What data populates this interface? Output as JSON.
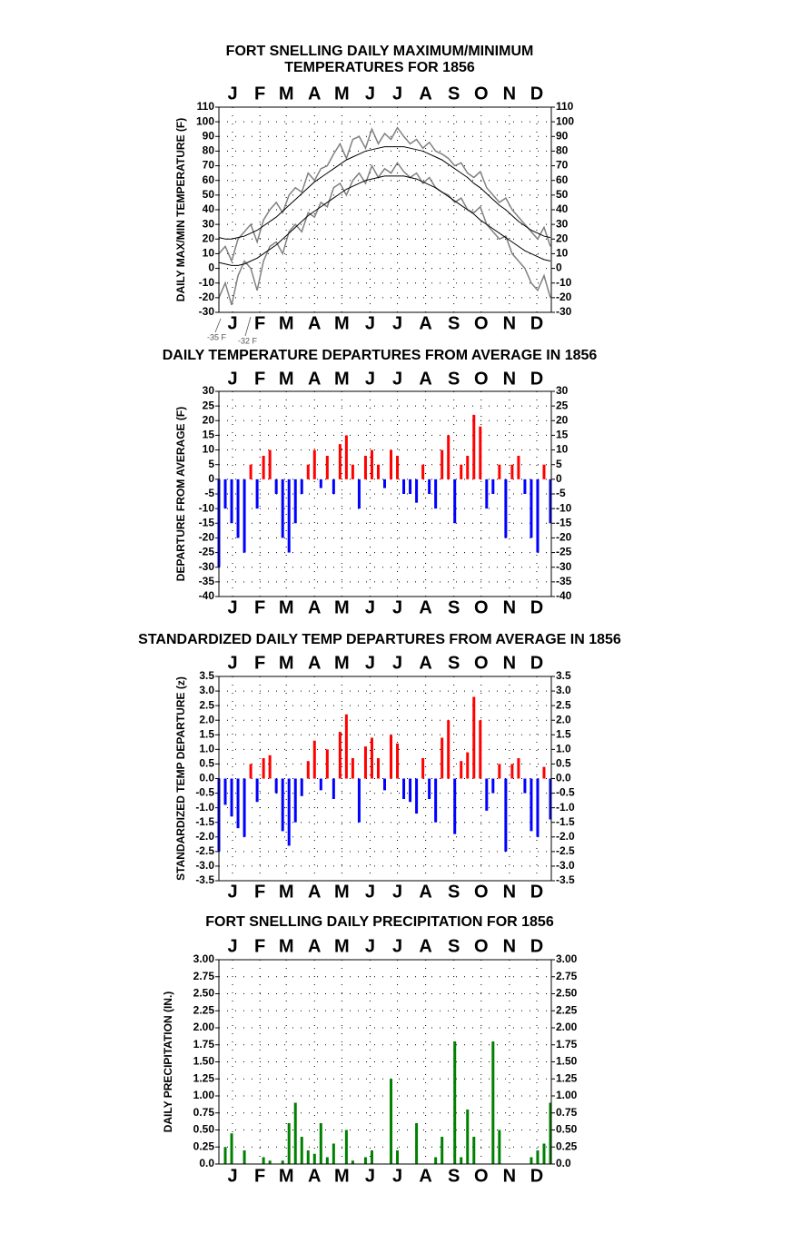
{
  "chart_data": [
    {
      "type": "line",
      "title": [
        "FORT SNELLING DAILY MAXIMUM/MINIMUM",
        "TEMPERATURES FOR 1856"
      ],
      "ylabel": "DAILY MAX/MIN TEMPERATURE (F)",
      "annotations": [
        "-35 F",
        "-32 F"
      ],
      "x": [
        1,
        8,
        15,
        22,
        29,
        36,
        43,
        50,
        57,
        64,
        71,
        78,
        85,
        92,
        99,
        106,
        113,
        120,
        127,
        134,
        141,
        148,
        155,
        162,
        169,
        176,
        183,
        190,
        197,
        204,
        211,
        218,
        225,
        232,
        239,
        246,
        253,
        260,
        267,
        274,
        281,
        288,
        295,
        302,
        309,
        316,
        323,
        330,
        337,
        344,
        351,
        358,
        365
      ],
      "series": [
        {
          "color": "#808080",
          "values": [
            10,
            15,
            5,
            20,
            25,
            30,
            18,
            33,
            40,
            45,
            38,
            50,
            55,
            52,
            65,
            60,
            68,
            70,
            78,
            85,
            75,
            88,
            90,
            82,
            95,
            85,
            92,
            88,
            96,
            90,
            85,
            88,
            82,
            86,
            80,
            78,
            75,
            70,
            72,
            65,
            62,
            66,
            55,
            50,
            45,
            48,
            40,
            35,
            30,
            25,
            20,
            28,
            15
          ]
        },
        {
          "color": "#808080",
          "values": [
            -20,
            -10,
            -25,
            -5,
            5,
            0,
            -15,
            5,
            15,
            18,
            10,
            25,
            30,
            25,
            38,
            35,
            45,
            42,
            55,
            58,
            50,
            60,
            65,
            58,
            70,
            62,
            68,
            65,
            72,
            66,
            62,
            65,
            58,
            62,
            55,
            52,
            50,
            45,
            48,
            40,
            38,
            42,
            30,
            25,
            20,
            22,
            10,
            5,
            0,
            -10,
            -15,
            -5,
            -20
          ]
        },
        {
          "color": "#000000",
          "values": [
            21,
            20,
            20,
            21,
            22,
            24,
            26,
            29,
            32,
            35,
            39,
            43,
            47,
            51,
            55,
            59,
            62,
            65,
            68,
            71,
            74,
            76,
            78,
            80,
            81,
            82,
            83,
            83,
            83,
            83,
            82,
            81,
            80,
            78,
            76,
            74,
            71,
            68,
            65,
            62,
            58,
            55,
            51,
            47,
            43,
            40,
            36,
            32,
            29,
            26,
            24,
            22,
            21
          ]
        },
        {
          "color": "#000000",
          "values": [
            4,
            3,
            2,
            2,
            3,
            5,
            7,
            10,
            13,
            16,
            20,
            24,
            28,
            32,
            36,
            39,
            42,
            45,
            48,
            51,
            54,
            56,
            58,
            60,
            61,
            62,
            63,
            63,
            63,
            63,
            62,
            61,
            59,
            57,
            55,
            52,
            49,
            46,
            43,
            40,
            37,
            33,
            30,
            27,
            24,
            21,
            18,
            15,
            12,
            10,
            8,
            6,
            5
          ]
        }
      ],
      "xlim": [
        1,
        366
      ],
      "xticks": [
        {
          "value": 16,
          "label": "J"
        },
        {
          "value": 46,
          "label": "F"
        },
        {
          "value": 75,
          "label": "M"
        },
        {
          "value": 106,
          "label": "A"
        },
        {
          "value": 136,
          "label": "M"
        },
        {
          "value": 167,
          "label": "J"
        },
        {
          "value": 197,
          "label": "J"
        },
        {
          "value": 228,
          "label": "A"
        },
        {
          "value": 259,
          "label": "S"
        },
        {
          "value": 289,
          "label": "O"
        },
        {
          "value": 320,
          "label": "N"
        },
        {
          "value": 350,
          "label": "D"
        }
      ],
      "ylim": [
        -30,
        110
      ],
      "yticks": [
        -30,
        -20,
        -10,
        0,
        10,
        20,
        30,
        40,
        50,
        60,
        70,
        80,
        90,
        100,
        110
      ],
      "grid": true
    },
    {
      "type": "bar",
      "title": "DAILY TEMPERATURE DEPARTURES FROM AVERAGE IN 1856",
      "ylabel": "DEPARTURE FROM AVERAGE (F)",
      "x": [
        1,
        8,
        15,
        22,
        29,
        36,
        43,
        50,
        57,
        64,
        71,
        78,
        85,
        92,
        99,
        106,
        113,
        120,
        127,
        134,
        141,
        148,
        155,
        162,
        169,
        176,
        183,
        190,
        197,
        204,
        211,
        218,
        225,
        232,
        239,
        246,
        253,
        260,
        267,
        274,
        281,
        288,
        295,
        302,
        309,
        316,
        323,
        330,
        337,
        344,
        351,
        358,
        365
      ],
      "values": [
        -30,
        -10,
        -15,
        -20,
        -25,
        5,
        -10,
        8,
        10,
        -5,
        -20,
        -25,
        -15,
        -5,
        5,
        10,
        -3,
        8,
        -5,
        12,
        15,
        5,
        -10,
        8,
        10,
        5,
        -3,
        10,
        8,
        -5,
        -5,
        -8,
        5,
        -5,
        -10,
        10,
        15,
        -15,
        5,
        8,
        22,
        18,
        -10,
        -5,
        5,
        -20,
        5,
        8,
        -5,
        -20,
        -25,
        5,
        -15
      ],
      "colors": {
        "positive": "#ff0000",
        "negative": "#0000ff"
      },
      "xlim": [
        1,
        366
      ],
      "xticks": [
        {
          "value": 16,
          "label": "J"
        },
        {
          "value": 46,
          "label": "F"
        },
        {
          "value": 75,
          "label": "M"
        },
        {
          "value": 106,
          "label": "A"
        },
        {
          "value": 136,
          "label": "M"
        },
        {
          "value": 167,
          "label": "J"
        },
        {
          "value": 197,
          "label": "J"
        },
        {
          "value": 228,
          "label": "A"
        },
        {
          "value": 259,
          "label": "S"
        },
        {
          "value": 289,
          "label": "O"
        },
        {
          "value": 320,
          "label": "N"
        },
        {
          "value": 350,
          "label": "D"
        }
      ],
      "ylim": [
        -40,
        30
      ],
      "yticks": [
        -40,
        -35,
        -30,
        -25,
        -20,
        -15,
        -10,
        -5,
        0,
        5,
        10,
        15,
        20,
        25,
        30
      ],
      "grid": true
    },
    {
      "type": "bar",
      "title": "STANDARDIZED DAILY TEMP DEPARTURES FROM AVERAGE IN 1856",
      "ylabel": "STANDARDIZED TEMP DEPARTURE (z)",
      "x": [
        1,
        8,
        15,
        22,
        29,
        36,
        43,
        50,
        57,
        64,
        71,
        78,
        85,
        92,
        99,
        106,
        113,
        120,
        127,
        134,
        141,
        148,
        155,
        162,
        169,
        176,
        183,
        190,
        197,
        204,
        211,
        218,
        225,
        232,
        239,
        246,
        253,
        260,
        267,
        274,
        281,
        288,
        295,
        302,
        309,
        316,
        323,
        330,
        337,
        344,
        351,
        358,
        365
      ],
      "values": [
        -2.5,
        -0.9,
        -1.3,
        -1.7,
        -2.0,
        0.5,
        -0.8,
        0.7,
        0.8,
        -0.5,
        -1.8,
        -2.3,
        -1.5,
        -0.6,
        0.6,
        1.3,
        -0.4,
        1.0,
        -0.7,
        1.6,
        2.2,
        0.7,
        -1.5,
        1.1,
        1.4,
        0.7,
        -0.4,
        1.5,
        1.2,
        -0.7,
        -0.8,
        -1.2,
        0.7,
        -0.7,
        -1.5,
        1.4,
        2.0,
        -1.9,
        0.6,
        0.9,
        2.8,
        2.0,
        -1.1,
        -0.5,
        0.5,
        -2.5,
        0.5,
        0.7,
        -0.5,
        -1.8,
        -2.0,
        0.4,
        -1.4
      ],
      "colors": {
        "positive": "#ff0000",
        "negative": "#0000ff"
      },
      "xlim": [
        1,
        366
      ],
      "xticks": [
        {
          "value": 16,
          "label": "J"
        },
        {
          "value": 46,
          "label": "F"
        },
        {
          "value": 75,
          "label": "M"
        },
        {
          "value": 106,
          "label": "A"
        },
        {
          "value": 136,
          "label": "M"
        },
        {
          "value": 167,
          "label": "J"
        },
        {
          "value": 197,
          "label": "J"
        },
        {
          "value": 228,
          "label": "A"
        },
        {
          "value": 259,
          "label": "S"
        },
        {
          "value": 289,
          "label": "O"
        },
        {
          "value": 320,
          "label": "N"
        },
        {
          "value": 350,
          "label": "D"
        }
      ],
      "ylim": [
        -3.5,
        3.5
      ],
      "yticks": [
        -3.5,
        {
          "value": -3,
          "label": "-3.0"
        },
        -2.5,
        {
          "value": -2,
          "label": "-2.0"
        },
        -1.5,
        {
          "value": -1,
          "label": "-1.0"
        },
        -0.5,
        {
          "value": 0,
          "label": "0.0"
        },
        0.5,
        {
          "value": 1,
          "label": "1.0"
        },
        1.5,
        {
          "value": 2,
          "label": "2.0"
        },
        2.5,
        {
          "value": 3,
          "label": "3.0"
        },
        3.5
      ],
      "grid": true
    },
    {
      "type": "bar",
      "title": "FORT SNELLING DAILY PRECIPITATION FOR 1856",
      "ylabel": "DAILY PRECIPITATION (IN.)",
      "x": [
        1,
        8,
        15,
        22,
        29,
        36,
        43,
        50,
        57,
        64,
        71,
        78,
        85,
        92,
        99,
        106,
        113,
        120,
        127,
        134,
        141,
        148,
        155,
        162,
        169,
        176,
        183,
        190,
        197,
        204,
        211,
        218,
        225,
        232,
        239,
        246,
        253,
        260,
        267,
        274,
        281,
        288,
        295,
        302,
        309,
        316,
        323,
        330,
        337,
        344,
        351,
        358,
        365
      ],
      "values": [
        0,
        0.25,
        0.45,
        0,
        0.2,
        0,
        0,
        0.1,
        0.05,
        0,
        0.05,
        0.6,
        0.9,
        0.4,
        0.2,
        0.15,
        0.6,
        0.1,
        0.3,
        0,
        0.5,
        0.05,
        0,
        0.1,
        0.2,
        0,
        0,
        1.25,
        0.2,
        0,
        0,
        0.6,
        0,
        0,
        0.1,
        0.4,
        0,
        1.8,
        0.1,
        0.8,
        0.4,
        0,
        0,
        1.8,
        0.5,
        0,
        0,
        0,
        0,
        0.1,
        0.2,
        0.3,
        0.9
      ],
      "colors": {
        "positive": "#008000",
        "negative": "#008000"
      },
      "xlim": [
        1,
        366
      ],
      "xticks": [
        {
          "value": 16,
          "label": "J"
        },
        {
          "value": 46,
          "label": "F"
        },
        {
          "value": 75,
          "label": "M"
        },
        {
          "value": 106,
          "label": "A"
        },
        {
          "value": 136,
          "label": "M"
        },
        {
          "value": 167,
          "label": "J"
        },
        {
          "value": 197,
          "label": "J"
        },
        {
          "value": 228,
          "label": "A"
        },
        {
          "value": 259,
          "label": "S"
        },
        {
          "value": 289,
          "label": "O"
        },
        {
          "value": 320,
          "label": "N"
        },
        {
          "value": 350,
          "label": "D"
        }
      ],
      "ylim": [
        0,
        3
      ],
      "yticks": [
        {
          "value": 0,
          "label": "0.0"
        },
        0.25,
        {
          "value": 0.5,
          "label": "0.50"
        },
        0.75,
        {
          "value": 1,
          "label": "1.00"
        },
        1.25,
        {
          "value": 1.5,
          "label": "1.50"
        },
        1.75,
        {
          "value": 2,
          "label": "2.00"
        },
        2.25,
        {
          "value": 2.5,
          "label": "2.50"
        },
        2.75,
        {
          "value": 3,
          "label": "3.00"
        }
      ],
      "grid": true
    }
  ]
}
